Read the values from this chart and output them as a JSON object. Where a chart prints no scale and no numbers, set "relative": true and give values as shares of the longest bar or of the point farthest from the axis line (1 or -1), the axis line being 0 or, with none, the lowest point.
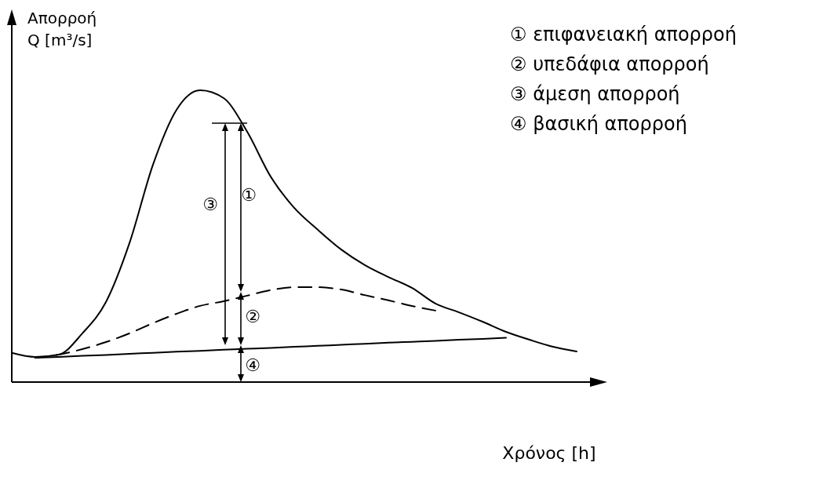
{
  "chart_data": {
    "type": "line",
    "relative": true,
    "xlabel": "Χρόνος [h]",
    "ylabel": "Απορροή\nQ [m³/s]",
    "categories": [
      null,
      null,
      null,
      null,
      null,
      null,
      null,
      null,
      null,
      null,
      null,
      null,
      null,
      null,
      null,
      null,
      null,
      null,
      null,
      null,
      null,
      null,
      null,
      null,
      null
    ],
    "series": [
      {
        "color": "#000000",
        "line_style": "solid",
        "values": [
          0.1,
          0.086,
          0.094,
          0.167,
          0.274,
          0.476,
          0.745,
          0.933,
          1,
          0.973,
          0.858,
          0.704,
          0.597,
          0.522,
          0.454,
          0.401,
          0.36,
          0.323,
          0.269,
          0.239,
          0.207,
          0.172,
          0.145,
          0.121,
          0.105
        ]
      },
      {
        "color": "#000000",
        "line_style": "dashed",
        "values": [
          null,
          0.083,
          0.094,
          0.113,
          0.137,
          0.167,
          0.202,
          0.234,
          0.261,
          0.277,
          0.296,
          0.315,
          0.325,
          0.325,
          0.317,
          0.298,
          0.28,
          0.261,
          0.245,
          null,
          null,
          null,
          null,
          null,
          null
        ]
      },
      {
        "color": "#000000",
        "line_style": "solid",
        "values": [
          null,
          0.083,
          0.086,
          0.09,
          0.093,
          0.097,
          0.1,
          0.104,
          0.107,
          0.111,
          0.114,
          0.117,
          0.121,
          0.124,
          0.128,
          0.131,
          0.135,
          0.138,
          0.141,
          0.145,
          0.148,
          0.152,
          null,
          null,
          null
        ]
      }
    ],
    "annotations": [
      "① επιφανειακή απορροή",
      "② υπεδάφια απορροή",
      "③ άμεση απορροή",
      "④ βασική απορροή",
      "①",
      "②",
      "③",
      "④"
    ]
  }
}
